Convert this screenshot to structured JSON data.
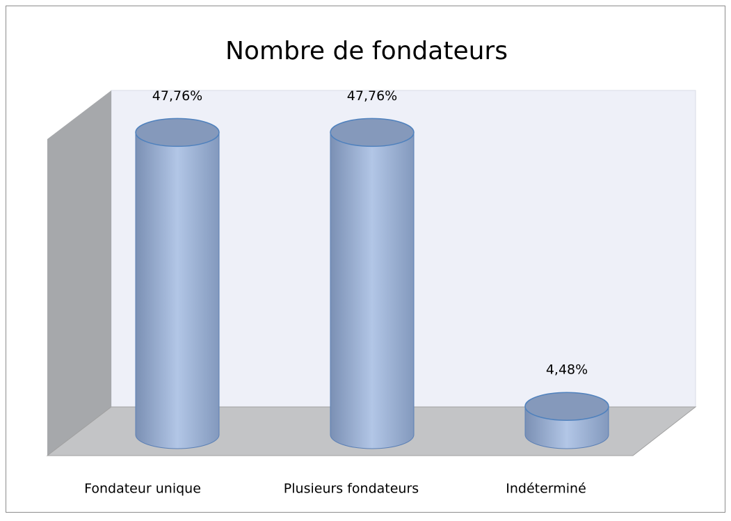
{
  "chart_data": {
    "type": "bar3d",
    "title": "Nombre de fondateurs",
    "categories": [
      "Fondateur unique",
      "Plusieurs fondateurs",
      "Indéterminé"
    ],
    "values": [
      47.76,
      47.76,
      4.48
    ],
    "value_labels": [
      "47,76%",
      "47,76%",
      "4,48%"
    ],
    "color": "#95abd2"
  }
}
